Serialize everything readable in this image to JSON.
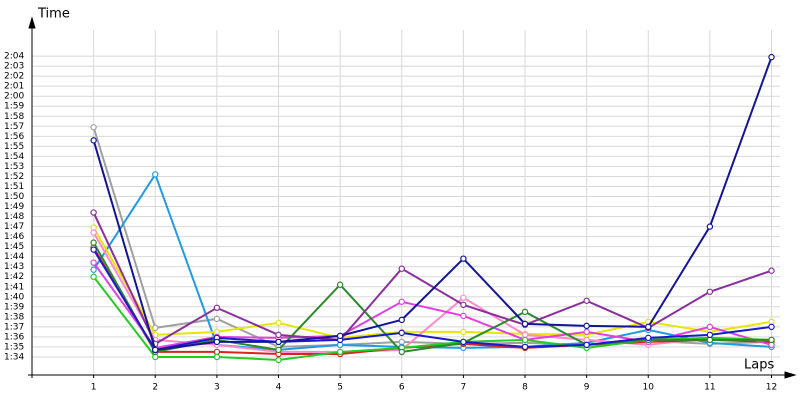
{
  "chart_data": {
    "type": "line",
    "y_label": "Time",
    "x_label": "Laps",
    "x": [
      1,
      2,
      3,
      4,
      5,
      6,
      7,
      8,
      9,
      10,
      11,
      12
    ],
    "xlim": [
      0,
      12.3
    ],
    "xticks": [
      1,
      2,
      3,
      4,
      5,
      6,
      7,
      8,
      9,
      10,
      11,
      12
    ],
    "ylim": [
      92.2,
      127.4
    ],
    "yticks": [
      {
        "value": 94,
        "label": "1:34"
      },
      {
        "value": 95,
        "label": "1:35"
      },
      {
        "value": 96,
        "label": "1:36"
      },
      {
        "value": 97,
        "label": "1:37"
      },
      {
        "value": 98,
        "label": "1:38"
      },
      {
        "value": 99,
        "label": "1:39"
      },
      {
        "value": 100,
        "label": "1:40"
      },
      {
        "value": 101,
        "label": "1:41"
      },
      {
        "value": 102,
        "label": "1:42"
      },
      {
        "value": 103,
        "label": "1:43"
      },
      {
        "value": 104,
        "label": "1:44"
      },
      {
        "value": 105,
        "label": "1:45"
      },
      {
        "value": 106,
        "label": "1:46"
      },
      {
        "value": 107,
        "label": "1:47"
      },
      {
        "value": 108,
        "label": "1:48"
      },
      {
        "value": 109,
        "label": "1:49"
      },
      {
        "value": 110,
        "label": "1:50"
      },
      {
        "value": 111,
        "label": "1:51"
      },
      {
        "value": 112,
        "label": "1:52"
      },
      {
        "value": 113,
        "label": "1:53"
      },
      {
        "value": 114,
        "label": "1:54"
      },
      {
        "value": 115,
        "label": "1:55"
      },
      {
        "value": 116,
        "label": "1:56"
      },
      {
        "value": 117,
        "label": "1:57"
      },
      {
        "value": 118,
        "label": "1:58"
      },
      {
        "value": 119,
        "label": "1:59"
      },
      {
        "value": 120,
        "label": "2:00"
      },
      {
        "value": 121,
        "label": "2:01"
      },
      {
        "value": 122,
        "label": "2:02"
      },
      {
        "value": 123,
        "label": "2:03"
      },
      {
        "value": 124,
        "label": "2:04"
      }
    ],
    "grid": true,
    "series": [
      {
        "color": "#a0a0a0",
        "values": [
          116.9,
          96.9,
          97.8,
          95.0,
          95.2,
          95.5,
          95.3,
          95.4,
          95.2,
          95.6,
          95.3,
          95.5
        ]
      },
      {
        "color": "#1e9be6",
        "values": [
          102.7,
          112.2,
          95.2,
          94.7,
          95.2,
          95.0,
          94.9,
          95.0,
          95.4,
          96.7,
          95.4,
          95.0
        ]
      },
      {
        "color": "#e6e600",
        "values": [
          106.9,
          96.2,
          96.5,
          97.4,
          95.9,
          96.5,
          96.5,
          96.3,
          96.2,
          97.5,
          96.5,
          97.5
        ]
      },
      {
        "color": "#ff88cc",
        "values": [
          106.4,
          95.7,
          95.2,
          94.5,
          94.5,
          94.7,
          99.9,
          96.2,
          95.7,
          95.2,
          95.9,
          95.7
        ]
      },
      {
        "color": "#e02020",
        "values": [
          104.9,
          94.5,
          94.5,
          94.3,
          94.3,
          94.9,
          95.3,
          94.9,
          95.2,
          95.5,
          95.7,
          95.5
        ]
      },
      {
        "color": "#e040e0",
        "values": [
          103.4,
          94.9,
          96.0,
          95.9,
          96.1,
          99.5,
          98.1,
          95.7,
          96.5,
          95.5,
          97.0,
          95.2
        ]
      },
      {
        "color": "#22cc22",
        "values": [
          102.0,
          94.0,
          94.0,
          93.7,
          94.5,
          94.9,
          95.5,
          95.7,
          94.9,
          95.7,
          95.9,
          95.7
        ]
      },
      {
        "color": "#2a8a2a",
        "values": [
          105.4,
          94.5,
          95.7,
          94.7,
          101.2,
          94.5,
          95.4,
          98.5,
          95.2,
          95.7,
          95.7,
          95.7
        ]
      },
      {
        "color": "#8b2f9e",
        "values": [
          108.4,
          95.3,
          98.9,
          96.2,
          95.7,
          102.8,
          99.2,
          97.2,
          99.6,
          96.9,
          100.5,
          102.6
        ]
      },
      {
        "color": "#1a1acc",
        "values": [
          104.7,
          94.7,
          95.9,
          95.5,
          95.7,
          96.4,
          95.5,
          95.0,
          95.2,
          95.9,
          96.2,
          97.0
        ]
      },
      {
        "color": "#14149a",
        "values": [
          115.6,
          94.7,
          95.5,
          95.5,
          96.1,
          97.7,
          103.8,
          97.3,
          97.1,
          97.0,
          107.0,
          123.9
        ]
      }
    ]
  }
}
